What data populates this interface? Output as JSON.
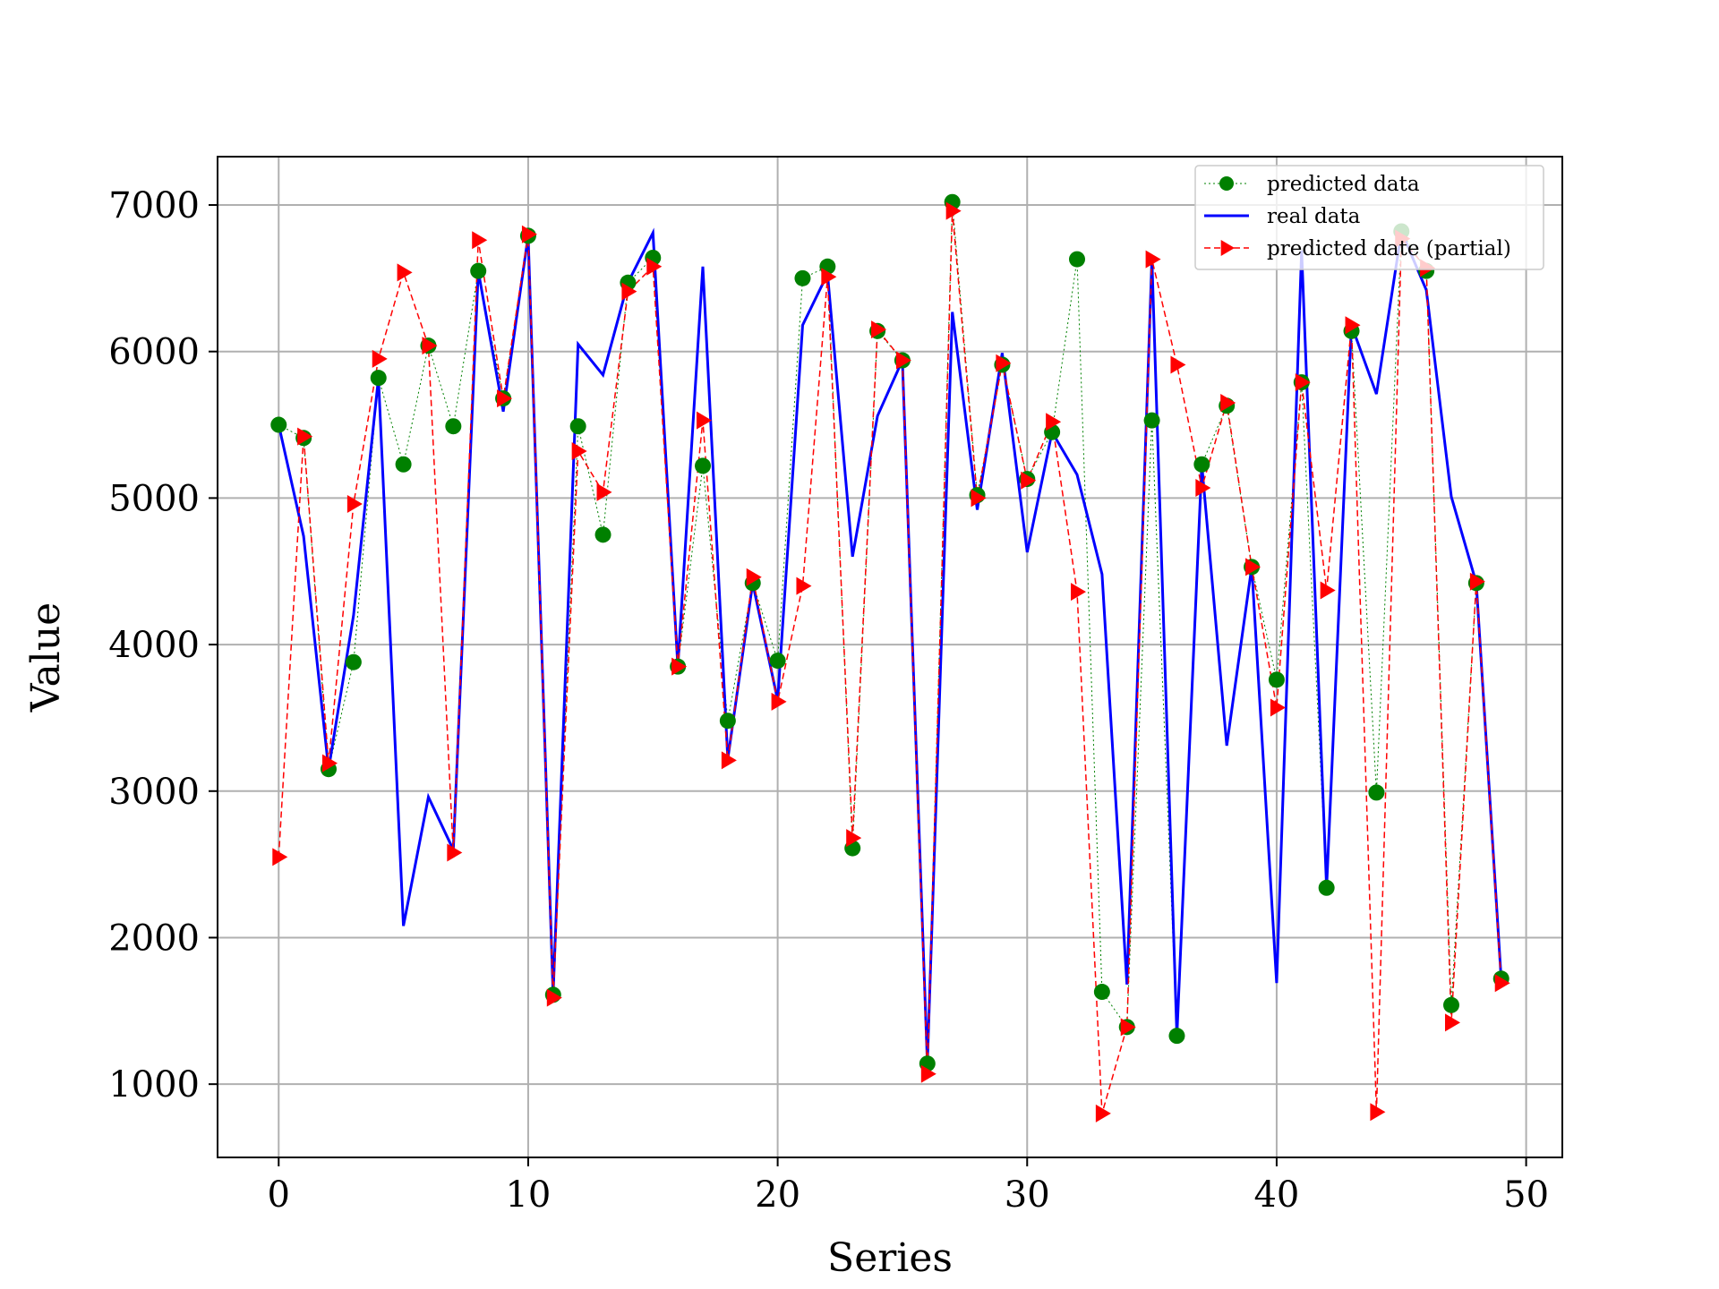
{
  "chart_data": {
    "type": "line",
    "xlabel": "Series",
    "ylabel": "Value",
    "xlim": [
      -2.45,
      51.45
    ],
    "ylim": [
      500,
      7330
    ],
    "xticks": [
      0,
      10,
      20,
      30,
      40,
      50
    ],
    "yticks": [
      1000,
      2000,
      3000,
      4000,
      5000,
      6000,
      7000
    ],
    "grid": true,
    "legend_position": "top-right",
    "colors": {
      "predicted": "#008000",
      "real": "#0000ff",
      "partial": "#ff0000",
      "grid": "#b0b0b0"
    },
    "x": [
      0,
      1,
      2,
      3,
      4,
      5,
      6,
      7,
      8,
      9,
      10,
      11,
      12,
      13,
      14,
      15,
      16,
      17,
      18,
      19,
      20,
      21,
      22,
      23,
      24,
      25,
      26,
      27,
      28,
      29,
      30,
      31,
      32,
      33,
      34,
      35,
      36,
      37,
      38,
      39,
      40,
      41,
      42,
      43,
      44,
      45,
      46,
      47,
      48,
      49
    ],
    "series": [
      {
        "name": "predicted data",
        "style": "dotted-line-circle-markers",
        "values": [
          5500,
          5410,
          3150,
          3880,
          5820,
          5230,
          6040,
          5490,
          6550,
          5680,
          6790,
          1610,
          5490,
          4750,
          6470,
          6640,
          3850,
          5220,
          3480,
          4420,
          3890,
          6500,
          6580,
          2610,
          6140,
          5940,
          1140,
          7020,
          5020,
          5910,
          5130,
          5450,
          6630,
          1630,
          1390,
          5530,
          1330,
          5230,
          5630,
          4530,
          3760,
          5790,
          2340,
          6140,
          2990,
          6820,
          6550,
          1540,
          4420,
          1720
        ]
      },
      {
        "name": "real data",
        "style": "solid-line",
        "values": [
          5500,
          4740,
          3150,
          4200,
          5820,
          2080,
          2960,
          2600,
          6550,
          5590,
          6790,
          1610,
          6050,
          5840,
          6470,
          6810,
          3850,
          6580,
          3220,
          4420,
          3620,
          6180,
          6530,
          4600,
          5560,
          5940,
          1140,
          6270,
          4920,
          5990,
          4630,
          5450,
          5160,
          4480,
          1680,
          6630,
          1330,
          5230,
          3310,
          4530,
          1690,
          6690,
          2340,
          6180,
          5710,
          6820,
          6420,
          5010,
          4420,
          1720
        ]
      },
      {
        "name": "predicted date (partial)",
        "style": "dashed-line-triangle-markers",
        "values": [
          2550,
          5420,
          3190,
          4960,
          5950,
          6540,
          6040,
          2580,
          6760,
          5680,
          6800,
          1590,
          5320,
          5040,
          6410,
          6580,
          3850,
          5530,
          3210,
          4460,
          3610,
          4400,
          6510,
          2680,
          6150,
          5940,
          1070,
          6960,
          5000,
          5920,
          5120,
          5520,
          4360,
          800,
          1390,
          6630,
          5910,
          5070,
          5650,
          4530,
          3570,
          5790,
          4370,
          6180,
          810,
          6770,
          6570,
          1420,
          4430,
          1690
        ]
      }
    ]
  }
}
